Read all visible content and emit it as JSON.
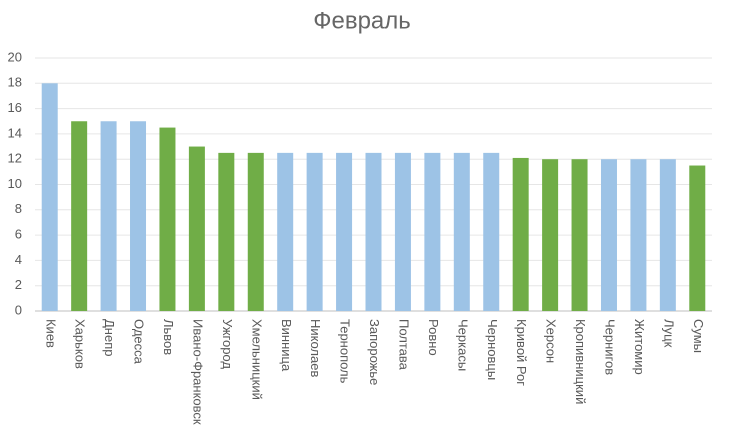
{
  "chart_data": {
    "type": "bar",
    "title": "Февраль",
    "categories": [
      "Киев",
      "Харьков",
      "Днепр",
      "Одесса",
      "Львов",
      "Ивано-Франковск",
      "Ужгород",
      "Хмельницкий",
      "Винница",
      "Николаев",
      "Тернополь",
      "Запорожье",
      "Полтава",
      "Ровно",
      "Черкасы",
      "Черновцы",
      "Кривой Рог",
      "Херсон",
      "Кропивницкий",
      "Чернигов",
      "Житомир",
      "Луцк",
      "Сумы"
    ],
    "values": [
      18,
      15,
      15,
      15,
      14.5,
      13,
      12.5,
      12.5,
      12.5,
      12.5,
      12.5,
      12.5,
      12.5,
      12.5,
      12.5,
      12.5,
      12.1,
      12,
      12,
      12,
      12,
      12,
      11.5
    ],
    "colors": [
      "#9dc3e6",
      "#70ad47",
      "#9dc3e6",
      "#9dc3e6",
      "#70ad47",
      "#70ad47",
      "#70ad47",
      "#70ad47",
      "#9dc3e6",
      "#9dc3e6",
      "#9dc3e6",
      "#9dc3e6",
      "#9dc3e6",
      "#9dc3e6",
      "#9dc3e6",
      "#9dc3e6",
      "#70ad47",
      "#70ad47",
      "#70ad47",
      "#9dc3e6",
      "#9dc3e6",
      "#9dc3e6",
      "#70ad47"
    ],
    "ylim": [
      0,
      20
    ],
    "yticks": [
      0,
      2,
      4,
      6,
      8,
      10,
      12,
      14,
      16,
      18,
      20
    ],
    "grid": true
  }
}
